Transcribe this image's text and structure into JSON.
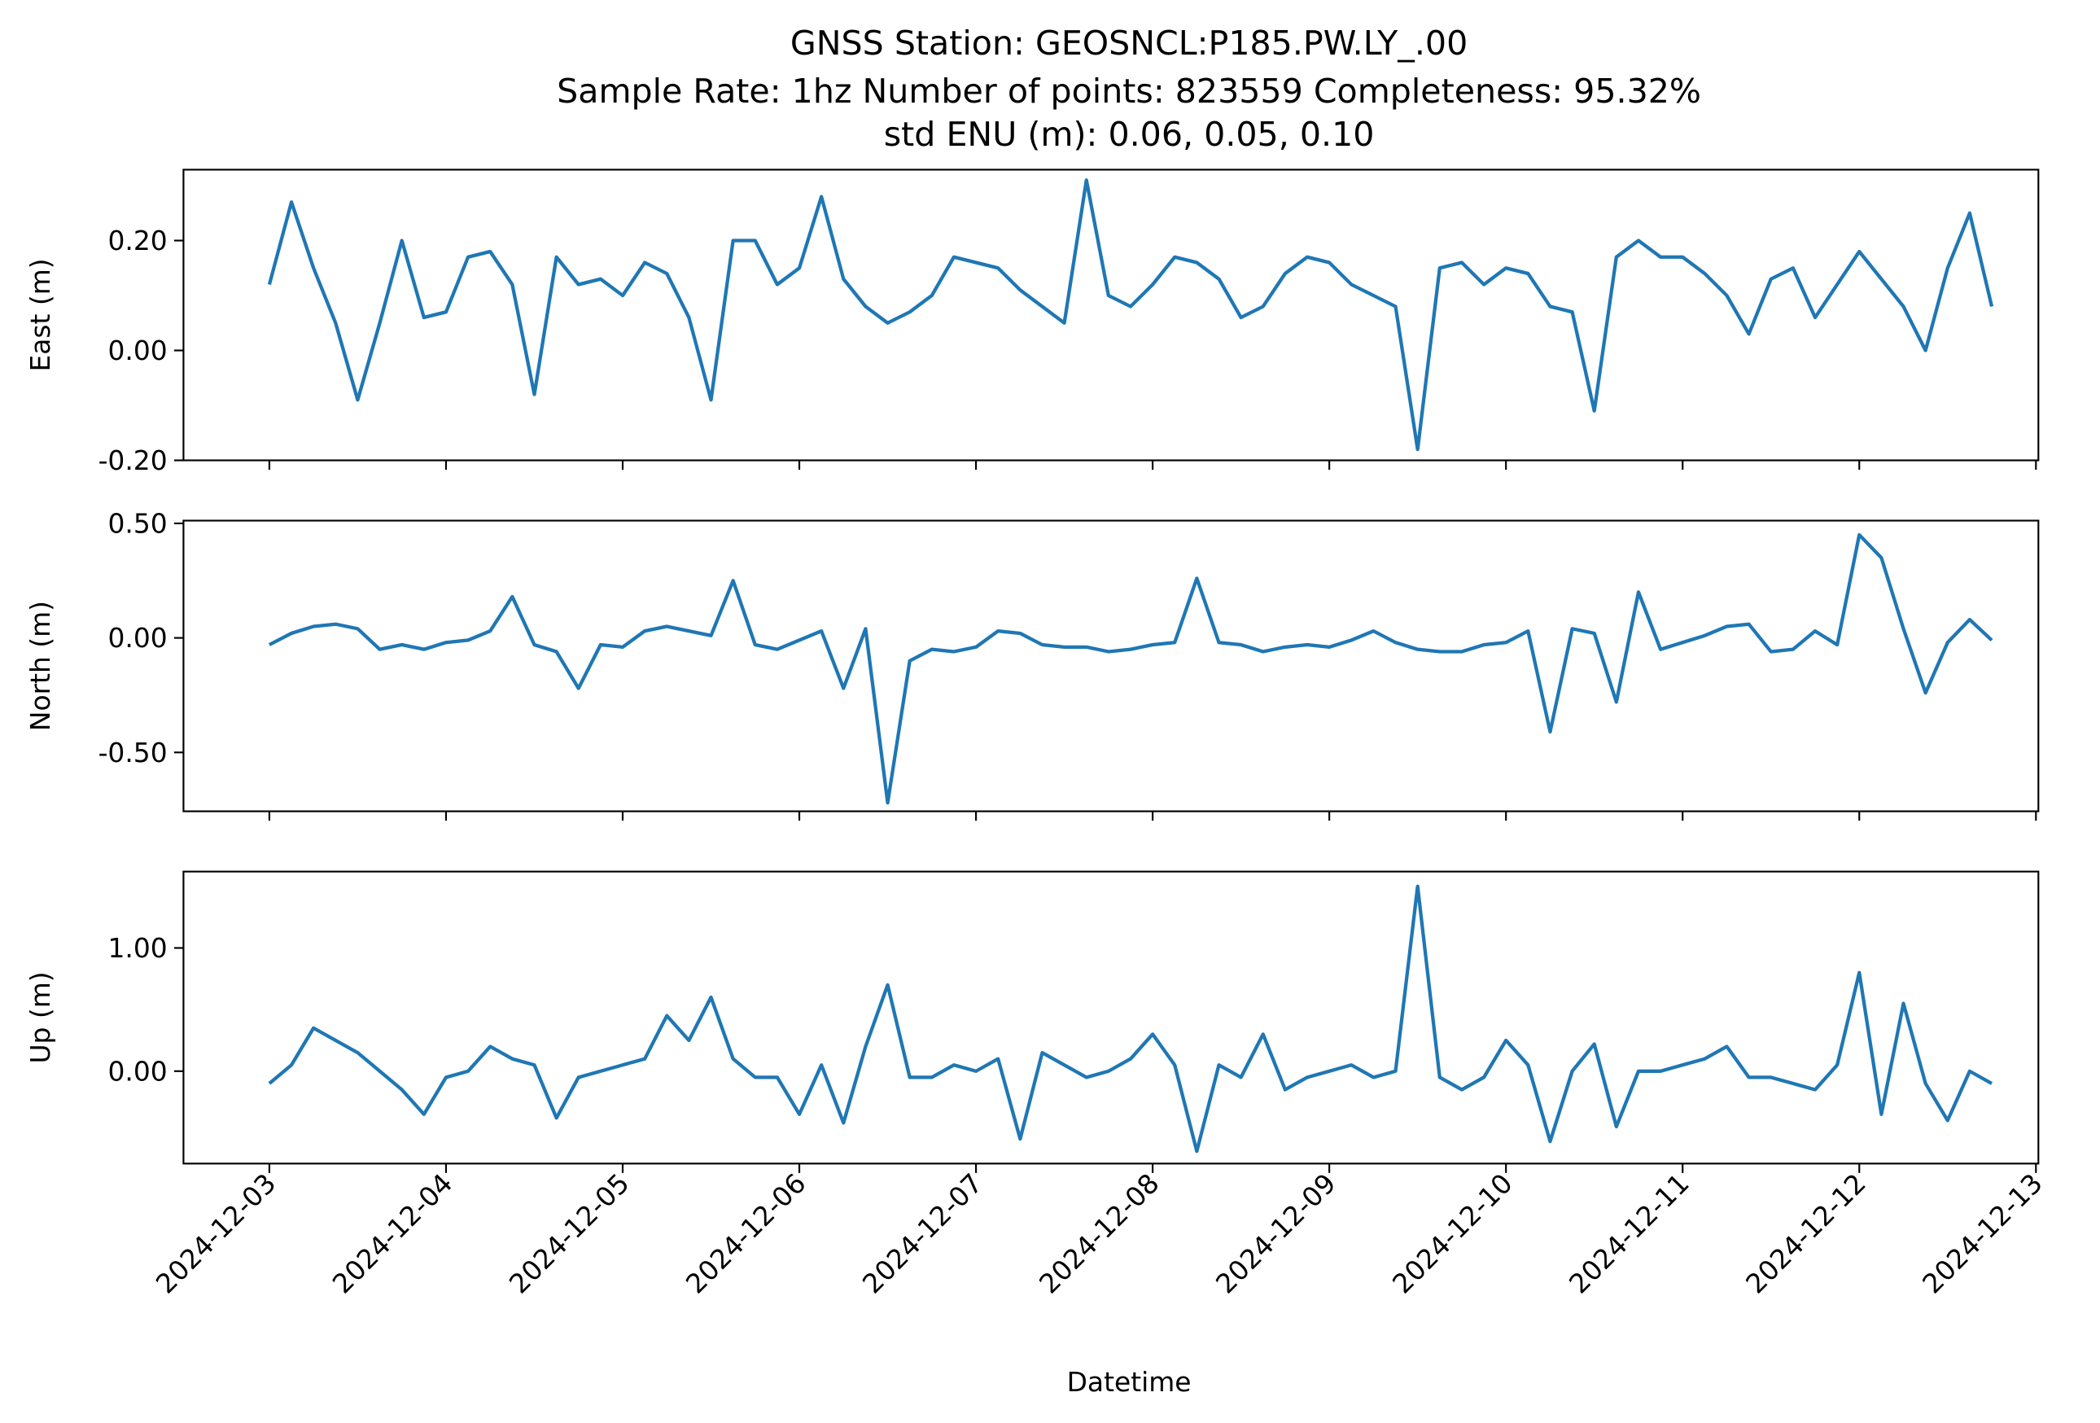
{
  "chart_data": {
    "type": "line",
    "title": "GNSS Station: GEOSNCL:P185.PW.LY_.00",
    "subtitle": [
      "Sample Rate: 1hz   Number of points: 823559    Completeness:  95.32%",
      "std ENU (m):  0.06, 0.05, 0.10"
    ],
    "xlabel": "Datetime",
    "x": [
      "2024-12-03 00:00",
      "2024-12-03 03:00",
      "2024-12-03 06:00",
      "2024-12-03 09:00",
      "2024-12-03 12:00",
      "2024-12-03 15:00",
      "2024-12-03 18:00",
      "2024-12-03 21:00",
      "2024-12-04 00:00",
      "2024-12-04 03:00",
      "2024-12-04 06:00",
      "2024-12-04 09:00",
      "2024-12-04 12:00",
      "2024-12-04 15:00",
      "2024-12-04 18:00",
      "2024-12-04 21:00",
      "2024-12-05 00:00",
      "2024-12-05 03:00",
      "2024-12-05 06:00",
      "2024-12-05 09:00",
      "2024-12-05 12:00",
      "2024-12-05 15:00",
      "2024-12-05 18:00",
      "2024-12-05 21:00",
      "2024-12-06 00:00",
      "2024-12-06 03:00",
      "2024-12-06 06:00",
      "2024-12-06 09:00",
      "2024-12-06 12:00",
      "2024-12-06 15:00",
      "2024-12-06 18:00",
      "2024-12-06 21:00",
      "2024-12-07 00:00",
      "2024-12-07 03:00",
      "2024-12-07 06:00",
      "2024-12-07 09:00",
      "2024-12-07 12:00",
      "2024-12-07 15:00",
      "2024-12-07 18:00",
      "2024-12-07 21:00",
      "2024-12-08 00:00",
      "2024-12-08 03:00",
      "2024-12-08 06:00",
      "2024-12-08 09:00",
      "2024-12-08 12:00",
      "2024-12-08 15:00",
      "2024-12-08 18:00",
      "2024-12-08 21:00",
      "2024-12-09 00:00",
      "2024-12-09 03:00",
      "2024-12-09 06:00",
      "2024-12-09 09:00",
      "2024-12-09 12:00",
      "2024-12-09 15:00",
      "2024-12-09 18:00",
      "2024-12-09 21:00",
      "2024-12-10 00:00",
      "2024-12-10 03:00",
      "2024-12-10 06:00",
      "2024-12-10 09:00",
      "2024-12-10 12:00",
      "2024-12-10 15:00",
      "2024-12-10 18:00",
      "2024-12-10 21:00",
      "2024-12-11 00:00",
      "2024-12-11 03:00",
      "2024-12-11 06:00",
      "2024-12-11 09:00",
      "2024-12-11 12:00",
      "2024-12-11 15:00",
      "2024-12-11 18:00",
      "2024-12-11 21:00",
      "2024-12-12 00:00",
      "2024-12-12 03:00",
      "2024-12-12 06:00",
      "2024-12-12 09:00",
      "2024-12-12 12:00",
      "2024-12-12 15:00",
      "2024-12-12 18:00"
    ],
    "xlim": [
      "2024-12-02 12:20",
      "2024-12-13 00:20"
    ],
    "xticks": [
      "2024-12-03",
      "2024-12-04",
      "2024-12-05",
      "2024-12-06",
      "2024-12-07",
      "2024-12-08",
      "2024-12-09",
      "2024-12-10",
      "2024-12-11",
      "2024-12-12",
      "2024-12-13"
    ],
    "panels": [
      {
        "ylabel": "East (m)",
        "ylim": [
          -0.2,
          0.329
        ],
        "yticks": [
          {
            "value": -0.2,
            "label": "-0.20"
          },
          {
            "value": 0,
            "label": "0.00"
          },
          {
            "value": 0.2,
            "label": "0.20"
          }
        ],
        "series": [
          {
            "color": "#1f77b4",
            "values": [
              0.12,
              0.27,
              0.15,
              0.05,
              -0.09,
              0.05,
              0.2,
              0.06,
              0.07,
              0.17,
              0.18,
              0.12,
              -0.08,
              0.17,
              0.12,
              0.13,
              0.1,
              0.16,
              0.14,
              0.06,
              -0.09,
              0.2,
              0.2,
              0.12,
              0.15,
              0.28,
              0.13,
              0.08,
              0.05,
              0.07,
              0.1,
              0.17,
              0.16,
              0.15,
              0.11,
              0.08,
              0.05,
              0.31,
              0.1,
              0.08,
              0.12,
              0.17,
              0.16,
              0.13,
              0.06,
              0.08,
              0.14,
              0.17,
              0.16,
              0.12,
              0.1,
              0.08,
              -0.18,
              0.15,
              0.16,
              0.12,
              0.15,
              0.14,
              0.08,
              0.07,
              -0.11,
              0.17,
              0.2,
              0.17,
              0.17,
              0.14,
              0.1,
              0.03,
              0.13,
              0.15,
              0.06,
              0.12,
              0.18,
              0.13,
              0.08,
              0.0,
              0.15,
              0.25,
              0.08
            ]
          }
        ]
      },
      {
        "ylabel": "North (m)",
        "ylim": [
          -0.757,
          0.512
        ],
        "yticks": [
          {
            "value": -0.5,
            "label": "-0.50"
          },
          {
            "value": 0,
            "label": "0.00"
          },
          {
            "value": 0.5,
            "label": "0.50"
          }
        ],
        "series": [
          {
            "color": "#1f77b4",
            "values": [
              -0.03,
              0.02,
              0.05,
              0.06,
              0.04,
              -0.05,
              -0.03,
              -0.05,
              -0.02,
              -0.01,
              0.03,
              0.18,
              -0.03,
              -0.06,
              -0.22,
              -0.03,
              -0.04,
              0.03,
              0.05,
              0.03,
              0.01,
              0.25,
              -0.03,
              -0.05,
              -0.01,
              0.03,
              -0.22,
              0.04,
              -0.72,
              -0.1,
              -0.05,
              -0.06,
              -0.04,
              0.03,
              0.02,
              -0.03,
              -0.04,
              -0.04,
              -0.06,
              -0.05,
              -0.03,
              -0.02,
              0.26,
              -0.02,
              -0.03,
              -0.06,
              -0.04,
              -0.03,
              -0.04,
              -0.01,
              0.03,
              -0.02,
              -0.05,
              -0.06,
              -0.06,
              -0.03,
              -0.02,
              0.03,
              -0.41,
              0.04,
              0.02,
              -0.28,
              0.2,
              -0.05,
              -0.02,
              0.01,
              0.05,
              0.06,
              -0.06,
              -0.05,
              0.03,
              -0.03,
              0.45,
              0.35,
              0.04,
              -0.24,
              -0.02,
              0.08,
              -0.01
            ]
          }
        ]
      },
      {
        "ylabel": "Up (m)",
        "ylim": [
          -0.75,
          1.62
        ],
        "yticks": [
          {
            "value": 0,
            "label": "0.00"
          },
          {
            "value": 1,
            "label": "1.00"
          }
        ],
        "series": [
          {
            "color": "#1f77b4",
            "values": [
              -0.1,
              0.05,
              0.35,
              0.25,
              0.15,
              0.0,
              -0.15,
              -0.35,
              -0.05,
              0.0,
              0.2,
              0.1,
              0.05,
              -0.38,
              -0.05,
              0.0,
              0.05,
              0.1,
              0.45,
              0.25,
              0.6,
              0.1,
              -0.05,
              -0.05,
              -0.35,
              0.05,
              -0.42,
              0.2,
              0.7,
              -0.05,
              -0.05,
              0.05,
              0.0,
              0.1,
              -0.55,
              0.15,
              0.05,
              -0.05,
              0.0,
              0.1,
              0.3,
              0.05,
              -0.65,
              0.05,
              -0.05,
              0.3,
              -0.15,
              -0.05,
              0.0,
              0.05,
              -0.05,
              0.0,
              1.5,
              -0.05,
              -0.15,
              -0.05,
              0.25,
              0.05,
              -0.57,
              0.0,
              0.22,
              -0.45,
              0.0,
              0.0,
              0.05,
              0.1,
              0.2,
              -0.05,
              -0.05,
              -0.1,
              -0.15,
              0.05,
              0.8,
              -0.35,
              0.55,
              -0.1,
              -0.4,
              0.0,
              -0.1
            ]
          }
        ]
      }
    ]
  }
}
